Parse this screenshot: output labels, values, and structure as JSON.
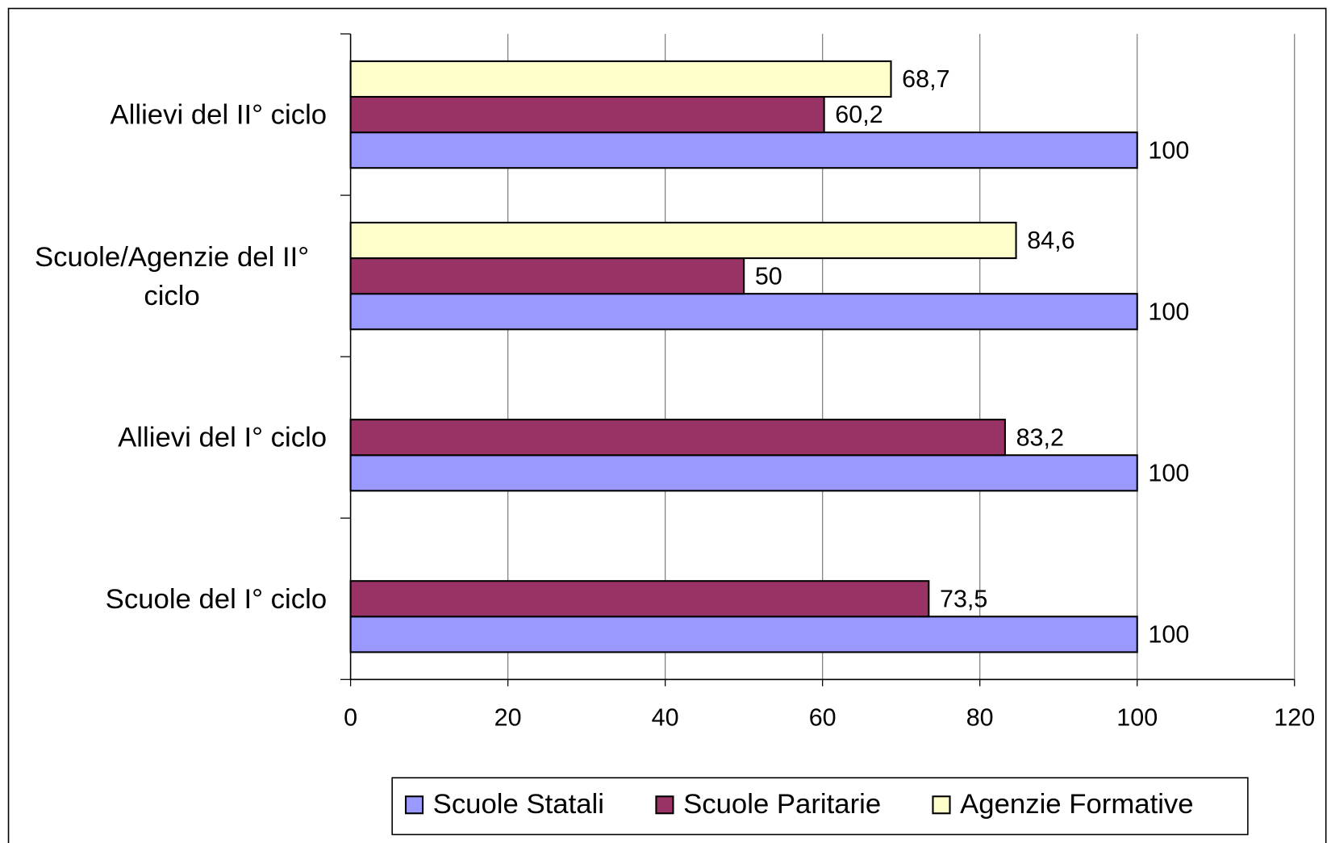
{
  "chart_data": {
    "type": "bar",
    "orientation": "horizontal",
    "categories": [
      "Scuole del I° ciclo",
      "Allievi del I° ciclo",
      "Scuole/Agenzie del II° ciclo",
      "Allievi del II° ciclo"
    ],
    "series": [
      {
        "name": "Scuole Statali",
        "color": "#9999ff",
        "values": [
          100,
          100,
          100,
          100
        ]
      },
      {
        "name": "Scuole Paritarie",
        "color": "#993366",
        "values": [
          73.5,
          83.2,
          50,
          60.2
        ],
        "value_labels": [
          "73,5",
          "83,2",
          "50",
          "60,2"
        ]
      },
      {
        "name": "Agenzie Formative",
        "color": "#ffffcc",
        "values": [
          null,
          null,
          84.6,
          68.7
        ],
        "value_labels": [
          null,
          null,
          "84,6",
          "68,7"
        ]
      }
    ],
    "xlim": [
      0,
      120
    ],
    "xticks": [
      0,
      20,
      40,
      60,
      80,
      100,
      120
    ],
    "grid": true,
    "legend": "bottom"
  }
}
